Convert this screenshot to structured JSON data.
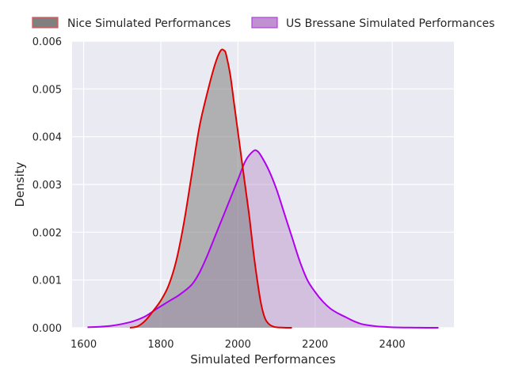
{
  "chart_data": {
    "type": "area",
    "xlabel": "Simulated Performances",
    "ylabel": "Density",
    "xlim": [
      1570,
      2560
    ],
    "ylim": [
      0,
      0.006
    ],
    "xticks": [
      "1600",
      "1800",
      "2000",
      "2200",
      "2400"
    ],
    "yticks": [
      "0.000",
      "0.001",
      "0.002",
      "0.003",
      "0.004",
      "0.005",
      "0.006"
    ],
    "grid": true,
    "legend_position": "top",
    "series": [
      {
        "name": "Nice Simulated Performances",
        "fill": "#808080",
        "fill_opacity": 0.55,
        "line": "#e00000",
        "x": [
          1720,
          1740,
          1760,
          1780,
          1800,
          1820,
          1840,
          1860,
          1880,
          1900,
          1920,
          1940,
          1955,
          1965,
          1970,
          1980,
          1990,
          2000,
          2010,
          2020,
          2030,
          2040,
          2050,
          2060,
          2070,
          2080,
          2090,
          2100,
          2120,
          2140
        ],
        "y": [
          0,
          3e-05,
          0.00015,
          0.00035,
          0.00057,
          0.00088,
          0.0014,
          0.0022,
          0.0032,
          0.0042,
          0.0049,
          0.0055,
          0.0058,
          0.0058,
          0.0057,
          0.0053,
          0.0047,
          0.0041,
          0.0035,
          0.0029,
          0.0023,
          0.0016,
          0.001,
          0.0005,
          0.0002,
          8e-05,
          3e-05,
          1e-05,
          3e-06,
          0
        ]
      },
      {
        "name": "US Bressane Simulated Performances",
        "fill": "#b88ec8",
        "fill_opacity": 0.45,
        "line": "#b000f0",
        "x": [
          1610,
          1640,
          1670,
          1700,
          1730,
          1760,
          1790,
          1820,
          1850,
          1880,
          1900,
          1920,
          1940,
          1960,
          1980,
          2000,
          2020,
          2040,
          2050,
          2060,
          2080,
          2100,
          2120,
          2140,
          2160,
          2180,
          2200,
          2220,
          2240,
          2260,
          2280,
          2300,
          2320,
          2340,
          2360,
          2380,
          2400,
          2430,
          2460,
          2490,
          2520
        ],
        "y": [
          1e-05,
          2e-05,
          4e-05,
          8e-05,
          0.00014,
          0.00024,
          0.0004,
          0.00055,
          0.0007,
          0.0009,
          0.00115,
          0.0015,
          0.0019,
          0.0023,
          0.0027,
          0.0031,
          0.0035,
          0.0037,
          0.0037,
          0.0036,
          0.0033,
          0.0029,
          0.0024,
          0.0019,
          0.0014,
          0.001,
          0.00075,
          0.00055,
          0.0004,
          0.0003,
          0.00022,
          0.00014,
          8e-05,
          5e-05,
          3e-05,
          2e-05,
          1e-05,
          5e-06,
          3e-06,
          1e-06,
          0
        ]
      }
    ]
  }
}
